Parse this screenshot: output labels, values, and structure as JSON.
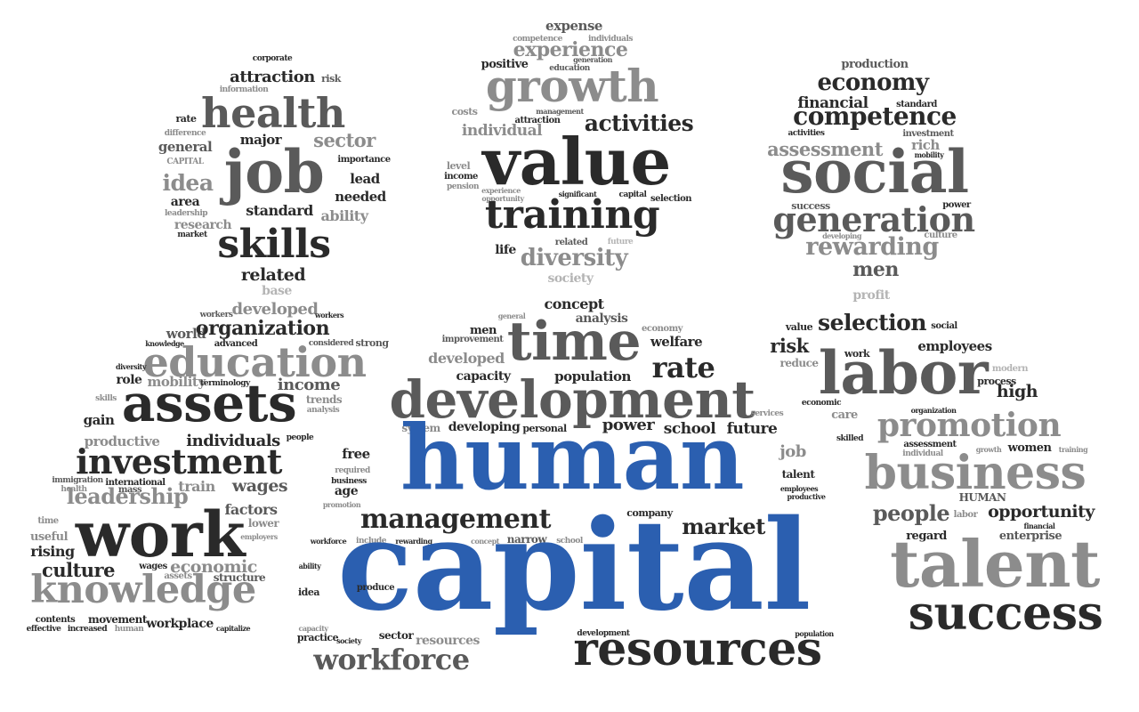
{
  "colors": {
    "background": "#ffffff",
    "dark": "#2a2a2a",
    "mid": "#5a5a5a",
    "light": "#8c8c8c",
    "faint": "#b4b4b4",
    "accent_blue": "#2b5fb0"
  },
  "word_clouds": [
    {
      "id": "head-left",
      "words": [
        "corporate",
        "attraction",
        "risk",
        "information",
        "health",
        "rate",
        "difference",
        "general",
        "major",
        "sector",
        "CAPITAL",
        "job",
        "importance",
        "idea",
        "lead",
        "area",
        "needed",
        "leadership",
        "standard",
        "ability",
        "research",
        "market",
        "skills",
        "related",
        "base"
      ]
    },
    {
      "id": "head-center",
      "words": [
        "expense",
        "competence",
        "individuals",
        "experience",
        "generation",
        "positive",
        "education",
        "growth",
        "costs",
        "management",
        "attraction",
        "individual",
        "activities",
        "value",
        "level",
        "income",
        "pension",
        "experience",
        "opportunity",
        "significant",
        "capital",
        "selection",
        "training",
        "life",
        "related",
        "future",
        "diversity",
        "society"
      ]
    },
    {
      "id": "head-right",
      "words": [
        "production",
        "economy",
        "financial",
        "standard",
        "competence",
        "activities",
        "investment",
        "rich",
        "assessment",
        "mobility",
        "social",
        "success",
        "power",
        "generation",
        "developing",
        "culture",
        "rewarding",
        "men",
        "profit"
      ]
    },
    {
      "id": "body-left",
      "words": [
        "workers",
        "developed",
        "workers",
        "world",
        "organization",
        "knowledge",
        "advanced",
        "considered",
        "strong",
        "education",
        "diversity",
        "role",
        "mobility",
        "terminology",
        "income",
        "assets",
        "skills",
        "trends",
        "analysis",
        "gain",
        "productive",
        "individuals",
        "people",
        "investment",
        "immigration",
        "international",
        "health",
        "mass",
        "train",
        "leadership",
        "wages",
        "factors",
        "time",
        "useful",
        "work",
        "lower",
        "rising",
        "employers",
        "culture",
        "wages",
        "economic",
        "assets",
        "structure",
        "knowledge",
        "contents",
        "movement",
        "effective",
        "increased",
        "human",
        "workplace",
        "capitalize"
      ]
    },
    {
      "id": "body-center",
      "words": [
        "concept",
        "analysis",
        "general",
        "men",
        "improvement",
        "economy",
        "time",
        "welfare",
        "developed",
        "rate",
        "capacity",
        "population",
        "development",
        "services",
        "system",
        "developing",
        "personal",
        "power",
        "school",
        "future",
        "free",
        "human",
        "required",
        "business",
        "age",
        "job",
        "talent",
        "employees",
        "productive",
        "promotion",
        "management",
        "company",
        "market",
        "workforce",
        "include",
        "rewarding",
        "concept",
        "narrow",
        "school",
        "capital",
        "ability",
        "idea",
        "produce",
        "capacity",
        "practice",
        "society",
        "sector",
        "resources",
        "development",
        "population",
        "workforce",
        "resources"
      ]
    },
    {
      "id": "body-right",
      "words": [
        "value",
        "selection",
        "social",
        "risk",
        "reduce",
        "work",
        "employees",
        "labor",
        "modern",
        "process",
        "high",
        "economic",
        "care",
        "organization",
        "promotion",
        "skilled",
        "assessment",
        "individual",
        "growth",
        "women",
        "training",
        "business",
        "HUMAN",
        "people",
        "labor",
        "opportunity",
        "financial",
        "regard",
        "enterprise",
        "talent",
        "success"
      ]
    }
  ]
}
